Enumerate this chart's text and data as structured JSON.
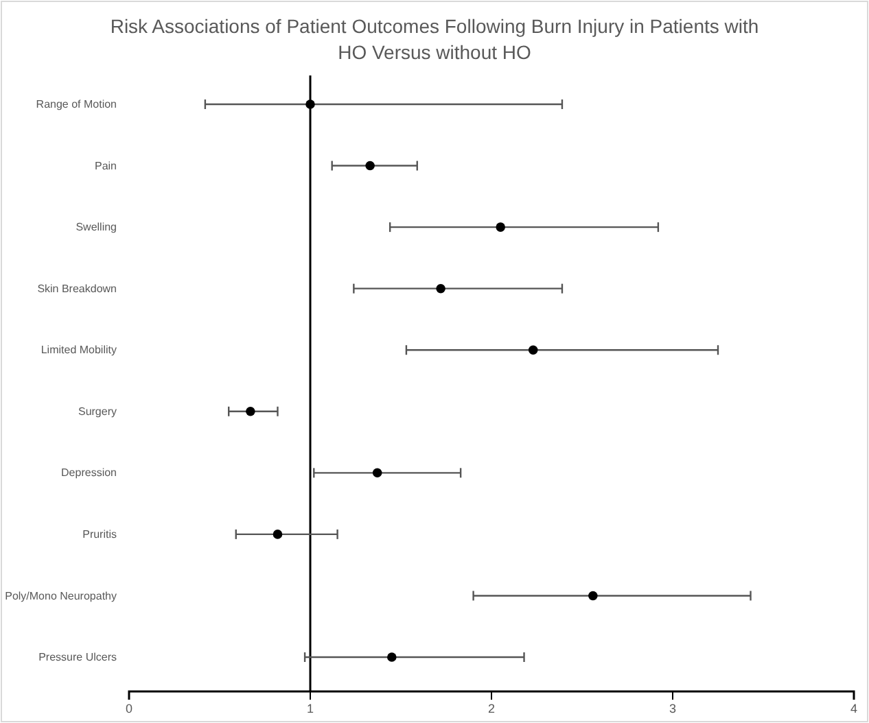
{
  "chart_data": {
    "type": "scatter",
    "title": "Risk Associations of Patient Outcomes Following Burn Injury in Patients with HO Versus without HO",
    "orientation": "horizontal",
    "categories": [
      "Range of Motion",
      "Pain",
      "Swelling",
      "Skin Breakdown",
      "Limited Mobility",
      "Surgery",
      "Depression",
      "Pruritis",
      "Poly/Mono Neuropathy",
      "Pressure Ulcers"
    ],
    "values": [
      1.0,
      1.33,
      2.05,
      1.72,
      2.23,
      0.67,
      1.37,
      0.82,
      2.56,
      1.45
    ],
    "errors": [
      [
        0.42,
        2.39
      ],
      [
        1.12,
        1.59
      ],
      [
        1.44,
        2.92
      ],
      [
        1.24,
        2.39
      ],
      [
        1.53,
        3.25
      ],
      [
        0.55,
        0.82
      ],
      [
        1.02,
        1.83
      ],
      [
        0.59,
        1.15
      ],
      [
        1.9,
        3.43
      ],
      [
        0.97,
        2.18
      ]
    ],
    "color": "#000000",
    "marker": "circle",
    "xlim": [
      0,
      4
    ],
    "xticks": [
      0,
      1,
      2,
      3,
      4
    ],
    "ref_lines": [
      {
        "axis": "x",
        "value": 1,
        "color": "#000000"
      }
    ],
    "grid": false
  }
}
